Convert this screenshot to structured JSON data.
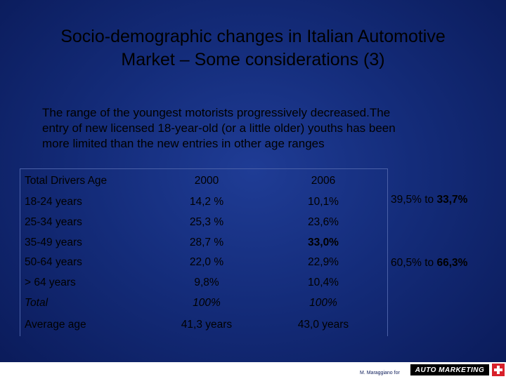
{
  "slide": {
    "title_line1": "Socio-demographic changes in Italian Automotive",
    "title_line2": "Market – Some considerations (3)",
    "intro_line1": "The range of the youngest motorists progressively decreased.The",
    "intro_line2": "entry of new licensed 18-year-old (or a little older) youths has been",
    "intro_line3": "more limited than the new entries in other age ranges"
  },
  "table": {
    "headers": [
      "Total Drivers Age",
      "2000",
      "2006"
    ],
    "rows": [
      {
        "label": "18-24 years",
        "y2000": "14,2 %",
        "y2006": "10,1%"
      },
      {
        "label": "25-34 years",
        "y2000": "25,3 %",
        "y2006": "23,6%"
      },
      {
        "label": "35-49 years",
        "y2000": "28,7 %",
        "y2006": "33,0%"
      },
      {
        "label": "50-64 years",
        "y2000": "22,0 %",
        "y2006": "22,9%"
      },
      {
        "label": "> 64 years",
        "y2000": "9,8%",
        "y2006": "10,4%"
      },
      {
        "label": "Total",
        "y2000": "100%",
        "y2006": "100%"
      },
      {
        "label": "Average age",
        "y2000": "41,3 years",
        "y2006": "43,0 years"
      }
    ]
  },
  "notes": {
    "young_prefix": "39,5% to ",
    "young_value": "33,7%",
    "mid_prefix": "60,5% to ",
    "mid_value": "66,3%"
  },
  "footer": {
    "credit": "M. Maraggiano for",
    "logo_text": "AUTO MARKETING"
  }
}
